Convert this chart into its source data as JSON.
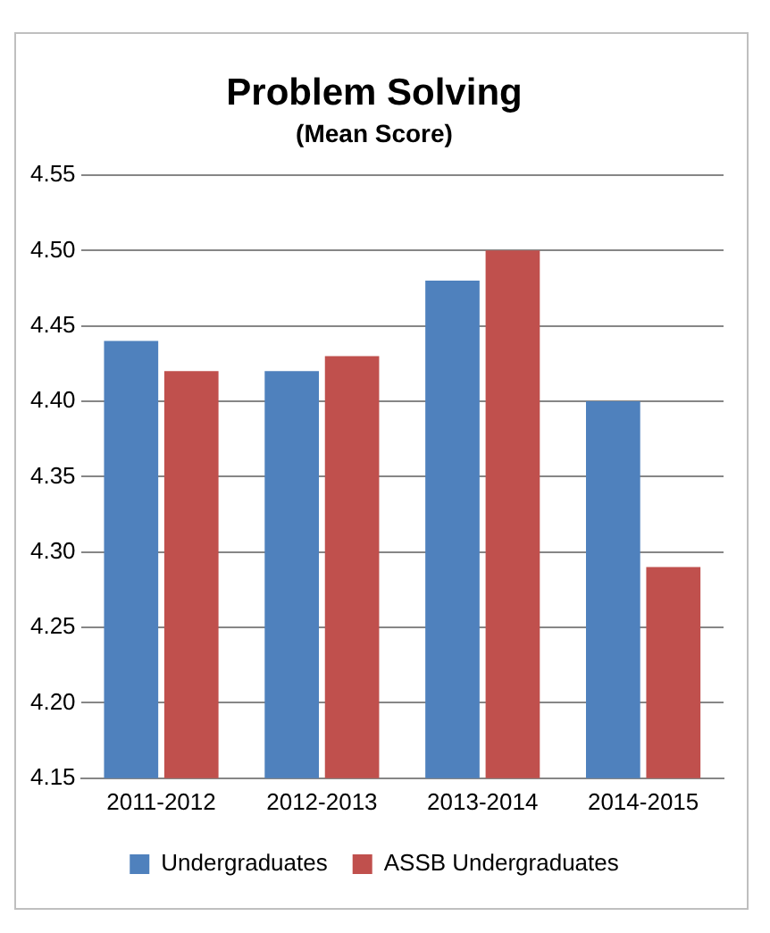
{
  "chart_data": {
    "type": "bar",
    "title": "Problem Solving",
    "subtitle": "(Mean Score)",
    "categories": [
      "2011-2012",
      "2012-2013",
      "2013-2014",
      "2014-2015"
    ],
    "series": [
      {
        "name": "Undergraduates",
        "color": "#4f81bd",
        "values": [
          4.44,
          4.42,
          4.48,
          4.4
        ]
      },
      {
        "name": "ASSB Undergraduates",
        "color": "#c0504d",
        "values": [
          4.42,
          4.43,
          4.5,
          4.29
        ]
      }
    ],
    "ylim": [
      4.15,
      4.55
    ],
    "yticks": [
      {
        "value": 4.15,
        "label": "4.15"
      },
      {
        "value": 4.2,
        "label": "4.20"
      },
      {
        "value": 4.25,
        "label": "4.25"
      },
      {
        "value": 4.3,
        "label": "4.30"
      },
      {
        "value": 4.35,
        "label": "4.35"
      },
      {
        "value": 4.4,
        "label": "4.40"
      },
      {
        "value": 4.45,
        "label": "4.45"
      },
      {
        "value": 4.5,
        "label": "4.50"
      },
      {
        "value": 4.55,
        "label": "4.55"
      }
    ],
    "grid": "y",
    "legend": "bottom"
  }
}
